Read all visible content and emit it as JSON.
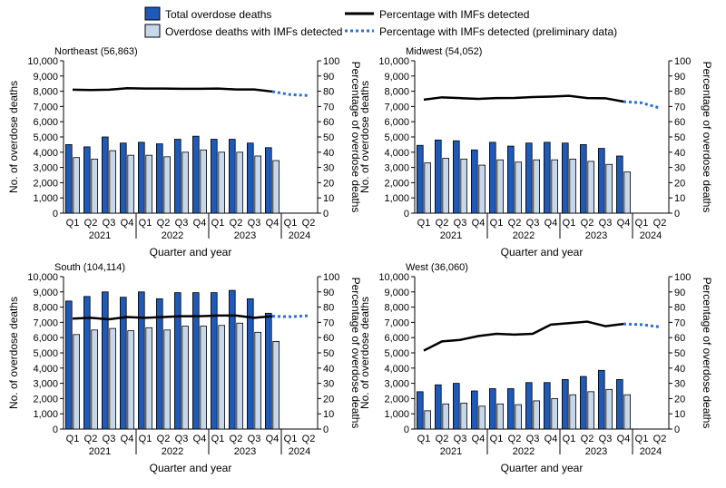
{
  "legend": {
    "total_label": "Total overdose deaths",
    "imf_label": "Overdose deaths with IMFs detected",
    "pct_label": "Percentage with IMFs detected",
    "pct_prelim_label": "Percentage with IMFs detected (preliminary data)"
  },
  "colors": {
    "total_fill": "#1f5ab8",
    "imf_fill": "#c8d8ec",
    "bar_stroke": "#000000",
    "line": "#000000",
    "prelim_line": "#2a6fd6"
  },
  "axes": {
    "left_label": "No. of overdose deaths",
    "right_label": "Percentage of overdose deaths",
    "x_label": "Quarter and year",
    "left_ticks": [
      "0",
      "1,000",
      "2,000",
      "3,000",
      "4,000",
      "5,000",
      "6,000",
      "7,000",
      "8,000",
      "9,000",
      "10,000"
    ],
    "right_ticks": [
      "0",
      "10",
      "20",
      "30",
      "40",
      "50",
      "60",
      "70",
      "80",
      "90",
      "100"
    ],
    "quarters": [
      "Q1",
      "Q2",
      "Q3",
      "Q4",
      "Q1",
      "Q2",
      "Q3",
      "Q4",
      "Q1",
      "Q2",
      "Q3",
      "Q4",
      "Q1",
      "Q2"
    ],
    "years": [
      "2021",
      "2022",
      "2023",
      "2024"
    ]
  },
  "chart_data": [
    {
      "type": "bar",
      "title": "Northeast (56,863)",
      "ylim": [
        0,
        10000
      ],
      "y2lim": [
        0,
        100
      ],
      "series": [
        {
          "name": "Total overdose deaths",
          "values": [
            4500,
            4350,
            5000,
            4600,
            4650,
            4550,
            4850,
            5050,
            4850,
            4850,
            4600,
            4300
          ]
        },
        {
          "name": "Overdose deaths with IMFs detected",
          "values": [
            3650,
            3550,
            4100,
            3800,
            3800,
            3700,
            4000,
            4150,
            4000,
            4000,
            3750,
            3450
          ]
        },
        {
          "name": "Percentage with IMFs detected",
          "values": [
            81,
            80.8,
            81,
            82,
            81.8,
            81.8,
            81.6,
            81.6,
            81.8,
            81.2,
            81.2,
            79.8
          ]
        },
        {
          "name": "Percentage with IMFs detected (preliminary data)",
          "values": [
            79.8,
            77.8,
            77.2
          ]
        }
      ]
    },
    {
      "type": "bar",
      "title": "Midwest (54,052)",
      "ylim": [
        0,
        10000
      ],
      "y2lim": [
        0,
        100
      ],
      "series": [
        {
          "name": "Total overdose deaths",
          "values": [
            4450,
            4800,
            4750,
            4150,
            4650,
            4400,
            4600,
            4650,
            4600,
            4500,
            4250,
            3750
          ]
        },
        {
          "name": "Overdose deaths with IMFs detected",
          "values": [
            3300,
            3600,
            3550,
            3150,
            3500,
            3350,
            3500,
            3500,
            3550,
            3400,
            3200,
            2700
          ]
        },
        {
          "name": "Percentage with IMFs detected",
          "values": [
            74.5,
            76,
            75.5,
            75,
            75.5,
            75.6,
            76.2,
            76.5,
            77,
            75.5,
            75.4,
            73.2
          ]
        },
        {
          "name": "Percentage with IMFs detected (preliminary data)",
          "values": [
            73.2,
            72.4,
            69
          ]
        }
      ]
    },
    {
      "type": "bar",
      "title": "South (104,114)",
      "ylim": [
        0,
        10000
      ],
      "y2lim": [
        0,
        100
      ],
      "series": [
        {
          "name": "Total overdose deaths",
          "values": [
            8400,
            8700,
            9000,
            8650,
            9000,
            8550,
            8950,
            8950,
            8950,
            9100,
            8550,
            7600
          ]
        },
        {
          "name": "Overdose deaths with IMFs detected",
          "values": [
            6200,
            6500,
            6600,
            6450,
            6650,
            6500,
            6750,
            6750,
            6800,
            6950,
            6350,
            5750
          ]
        },
        {
          "name": "Percentage with IMFs detected",
          "values": [
            72.5,
            73,
            72,
            73.5,
            73,
            73.5,
            74,
            74,
            74.5,
            74.5,
            73,
            74
          ]
        },
        {
          "name": "Percentage with IMFs detected (preliminary data)",
          "values": [
            74,
            73.7,
            74.4
          ]
        }
      ]
    },
    {
      "type": "bar",
      "title": "West (36,060)",
      "ylim": [
        0,
        10000
      ],
      "y2lim": [
        0,
        100
      ],
      "series": [
        {
          "name": "Total overdose deaths",
          "values": [
            2450,
            2900,
            3000,
            2500,
            2650,
            2650,
            3050,
            3050,
            3250,
            3450,
            3850,
            3250
          ]
        },
        {
          "name": "Overdose deaths with IMFs detected",
          "values": [
            1200,
            1650,
            1700,
            1500,
            1650,
            1600,
            1850,
            2000,
            2250,
            2450,
            2600,
            2250
          ]
        },
        {
          "name": "Percentage with IMFs detected",
          "values": [
            51.5,
            57.5,
            58.5,
            61,
            62.5,
            62,
            62.5,
            68.5,
            69.5,
            70.5,
            67.5,
            69
          ]
        },
        {
          "name": "Percentage with IMFs detected (preliminary data)",
          "values": [
            69,
            68.5,
            67
          ]
        }
      ]
    }
  ]
}
